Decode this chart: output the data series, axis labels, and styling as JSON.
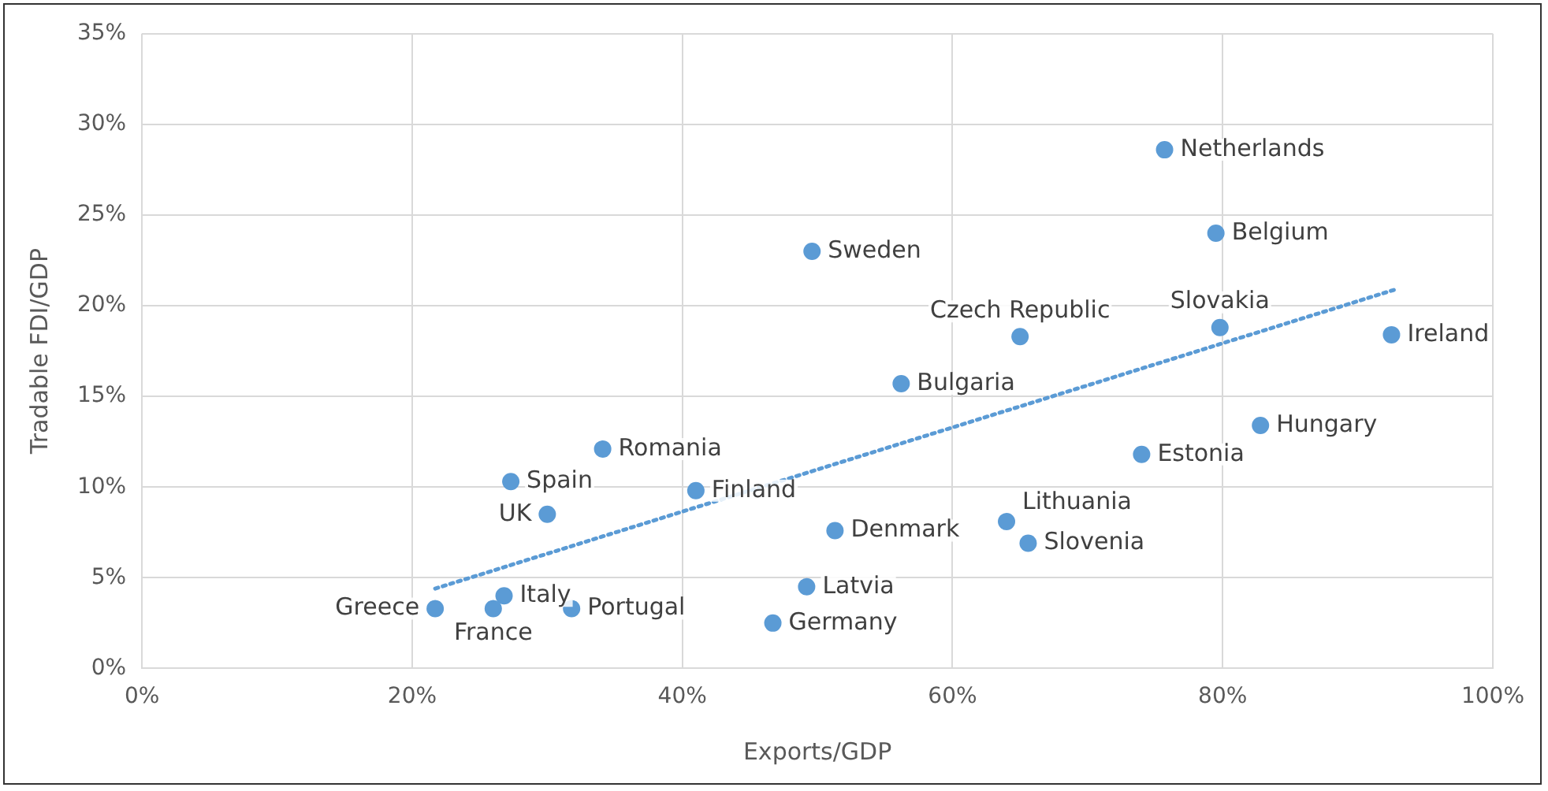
{
  "chart_data": {
    "type": "scatter",
    "xlabel": "Exports/GDP",
    "ylabel": "Tradable FDI/GDP",
    "xlim": [
      0,
      100
    ],
    "ylim": [
      0,
      35
    ],
    "xticks": [
      {
        "value": 0,
        "label": "0%"
      },
      {
        "value": 20,
        "label": "20%"
      },
      {
        "value": 40,
        "label": "40%"
      },
      {
        "value": 60,
        "label": "60%"
      },
      {
        "value": 80,
        "label": "80%"
      },
      {
        "value": 100,
        "label": "100%"
      }
    ],
    "yticks": [
      {
        "value": 0,
        "label": "0%"
      },
      {
        "value": 5,
        "label": "5%"
      },
      {
        "value": 10,
        "label": "10%"
      },
      {
        "value": 15,
        "label": "15%"
      },
      {
        "value": 20,
        "label": "20%"
      },
      {
        "value": 25,
        "label": "25%"
      },
      {
        "value": 30,
        "label": "30%"
      },
      {
        "value": 35,
        "label": "35%"
      }
    ],
    "grid": true,
    "legend": false,
    "marker": "circle",
    "series": [
      {
        "type": "scatter",
        "color": "#5b9bd5",
        "x": [
          75.7,
          79.5,
          49.6,
          79.8,
          92.5,
          65.0,
          56.2,
          82.8,
          74.0,
          34.1,
          27.3,
          41.0,
          30.0,
          51.3,
          64.0,
          65.6,
          49.2,
          46.7,
          26.8,
          26.0,
          31.8,
          21.7
        ],
        "values": [
          28.6,
          24.0,
          23.0,
          18.8,
          18.4,
          18.3,
          15.7,
          13.4,
          11.8,
          12.1,
          10.3,
          9.8,
          8.5,
          7.6,
          8.1,
          6.9,
          4.5,
          2.5,
          4.0,
          3.3,
          3.3,
          3.3
        ]
      },
      {
        "type": "line",
        "color": "#5b9bd5",
        "line_style": "dotted",
        "marker": "none",
        "x": [
          21.7,
          92.8
        ],
        "values": [
          4.4,
          20.9
        ]
      }
    ],
    "annotations": [
      {
        "text": "Netherlands",
        "x": 75.7,
        "y": 28.6
      },
      {
        "text": "Belgium",
        "x": 79.5,
        "y": 24.0
      },
      {
        "text": "Sweden",
        "x": 49.6,
        "y": 23.0
      },
      {
        "text": "Slovakia",
        "x": 79.8,
        "y": 18.8
      },
      {
        "text": "Ireland",
        "x": 92.5,
        "y": 18.4
      },
      {
        "text": "Czech Republic",
        "x": 65.0,
        "y": 18.3
      },
      {
        "text": "Bulgaria",
        "x": 56.2,
        "y": 15.7
      },
      {
        "text": "Hungary",
        "x": 82.8,
        "y": 13.4
      },
      {
        "text": "Estonia",
        "x": 74.0,
        "y": 11.8
      },
      {
        "text": "Romania",
        "x": 34.1,
        "y": 12.1
      },
      {
        "text": "Spain",
        "x": 27.3,
        "y": 10.3
      },
      {
        "text": "Finland",
        "x": 41.0,
        "y": 9.8
      },
      {
        "text": "UK",
        "x": 30.0,
        "y": 8.5
      },
      {
        "text": "Denmark",
        "x": 51.3,
        "y": 7.6
      },
      {
        "text": "Lithuania",
        "x": 64.0,
        "y": 8.1
      },
      {
        "text": "Slovenia",
        "x": 65.6,
        "y": 6.9
      },
      {
        "text": "Latvia",
        "x": 49.2,
        "y": 4.5
      },
      {
        "text": "Germany",
        "x": 46.7,
        "y": 2.5
      },
      {
        "text": "Italy",
        "x": 26.8,
        "y": 4.0
      },
      {
        "text": "France",
        "x": 26.0,
        "y": 3.3
      },
      {
        "text": "Portugal",
        "x": 31.8,
        "y": 3.3
      },
      {
        "text": "Greece",
        "x": 21.7,
        "y": 3.3
      }
    ]
  }
}
